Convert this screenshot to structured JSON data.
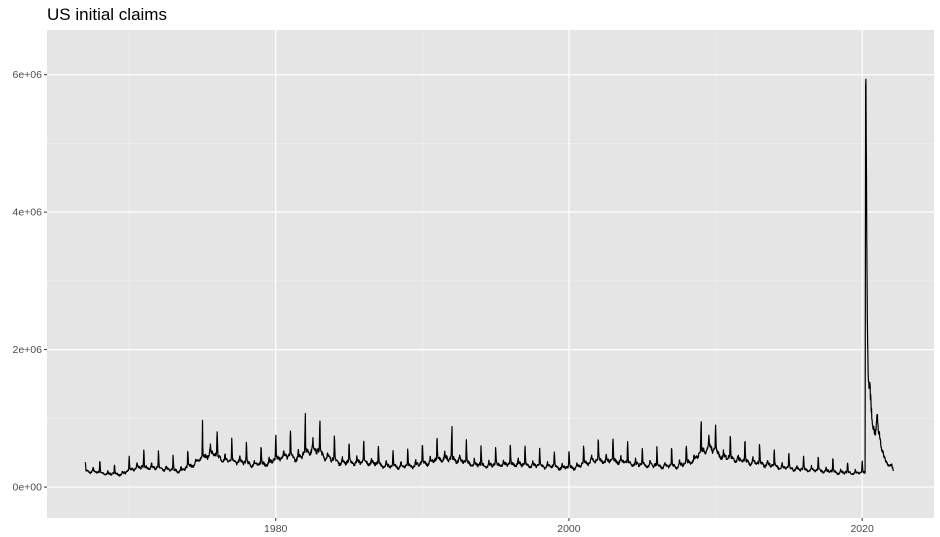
{
  "chart_data": {
    "type": "line",
    "title": "US initial claims",
    "xlabel": "",
    "ylabel": "",
    "x_range": [
      1964.4,
      2024.9
    ],
    "ylim": [
      -450000,
      6650000
    ],
    "x_ticks": [
      1980,
      2000,
      2020
    ],
    "x_tick_labels": [
      "1980",
      "2000",
      "2020"
    ],
    "y_ticks": [
      0,
      2000000,
      4000000,
      6000000
    ],
    "y_tick_labels": [
      "0e+00",
      "2e+06",
      "4e+06",
      "6e+06"
    ],
    "grid": true,
    "legend": "none",
    "colors": {
      "panel": "#e5e5e5",
      "grid_major": "#ffffff",
      "grid_minor": "#f2f2f2",
      "line": "#000000"
    },
    "series": [
      {
        "frequency": "weekly",
        "start": "1967-01-07",
        "base_level_by_year": [
          [
            1967,
            240000
          ],
          [
            1968,
            200000
          ],
          [
            1969,
            195000
          ],
          [
            1970,
            300000
          ],
          [
            1971,
            300000
          ],
          [
            1972,
            270000
          ],
          [
            1973,
            245000
          ],
          [
            1974,
            360000
          ],
          [
            1975,
            520000
          ],
          [
            1976,
            410000
          ],
          [
            1977,
            390000
          ],
          [
            1978,
            340000
          ],
          [
            1979,
            360000
          ],
          [
            1980,
            480000
          ],
          [
            1981,
            440000
          ],
          [
            1982,
            590000
          ],
          [
            1983,
            450000
          ],
          [
            1984,
            370000
          ],
          [
            1985,
            380000
          ],
          [
            1986,
            370000
          ],
          [
            1987,
            320000
          ],
          [
            1988,
            310000
          ],
          [
            1989,
            330000
          ],
          [
            1990,
            380000
          ],
          [
            1991,
            440000
          ],
          [
            1992,
            410000
          ],
          [
            1993,
            340000
          ],
          [
            1994,
            330000
          ],
          [
            1995,
            345000
          ],
          [
            1996,
            350000
          ],
          [
            1997,
            325000
          ],
          [
            1998,
            315000
          ],
          [
            1999,
            295000
          ],
          [
            2000,
            300000
          ],
          [
            2001,
            400000
          ],
          [
            2002,
            400000
          ],
          [
            2003,
            395000
          ],
          [
            2004,
            345000
          ],
          [
            2005,
            335000
          ],
          [
            2006,
            315000
          ],
          [
            2007,
            320000
          ],
          [
            2008,
            410000
          ],
          [
            2009,
            620000
          ],
          [
            2010,
            460000
          ],
          [
            2011,
            410000
          ],
          [
            2012,
            370000
          ],
          [
            2013,
            340000
          ],
          [
            2014,
            300000
          ],
          [
            2015,
            275000
          ],
          [
            2016,
            260000
          ],
          [
            2017,
            245000
          ],
          [
            2018,
            220000
          ],
          [
            2019,
            215000
          ],
          [
            2020,
            215000
          ],
          [
            2021,
            400000
          ],
          [
            2022,
            220000
          ]
        ],
        "seasonal_peak_factor": 1.75,
        "events": [
          [
            "1975-01-04",
            970000
          ],
          [
            "1982-01-09",
            1070000
          ],
          [
            "1983-01-08",
            960000
          ],
          [
            "1992-01-11",
            880000
          ],
          [
            "2009-01-10",
            950000
          ],
          [
            "2020-03-14",
            250000
          ],
          [
            "2020-03-21",
            2900000
          ],
          [
            "2020-03-28",
            6150000
          ],
          [
            "2020-04-04",
            6100000
          ],
          [
            "2020-04-11",
            4900000
          ],
          [
            "2020-04-18",
            4300000
          ],
          [
            "2020-04-25",
            3800000
          ],
          [
            "2020-05-02",
            3000000
          ],
          [
            "2020-05-09",
            2600000
          ],
          [
            "2020-05-16",
            2200000
          ],
          [
            "2020-05-23",
            1900000
          ],
          [
            "2020-05-30",
            1600000
          ],
          [
            "2020-06-06",
            1550000
          ],
          [
            "2020-06-20",
            1480000
          ],
          [
            "2020-07-04",
            1500000
          ],
          [
            "2020-08-01",
            1300000
          ],
          [
            "2020-09-05",
            950000
          ],
          [
            "2020-10-03",
            880000
          ],
          [
            "2020-11-07",
            800000
          ],
          [
            "2020-12-05",
            790000
          ],
          [
            "2021-01-09",
            1070000
          ],
          [
            "2021-02-06",
            820000
          ],
          [
            "2021-03-06",
            780000
          ],
          [
            "2021-05-01",
            550000
          ],
          [
            "2021-08-07",
            390000
          ],
          [
            "2021-11-06",
            300000
          ],
          [
            "2022-01-08",
            320000
          ],
          [
            "2022-02-26",
            225000
          ]
        ]
      }
    ]
  }
}
